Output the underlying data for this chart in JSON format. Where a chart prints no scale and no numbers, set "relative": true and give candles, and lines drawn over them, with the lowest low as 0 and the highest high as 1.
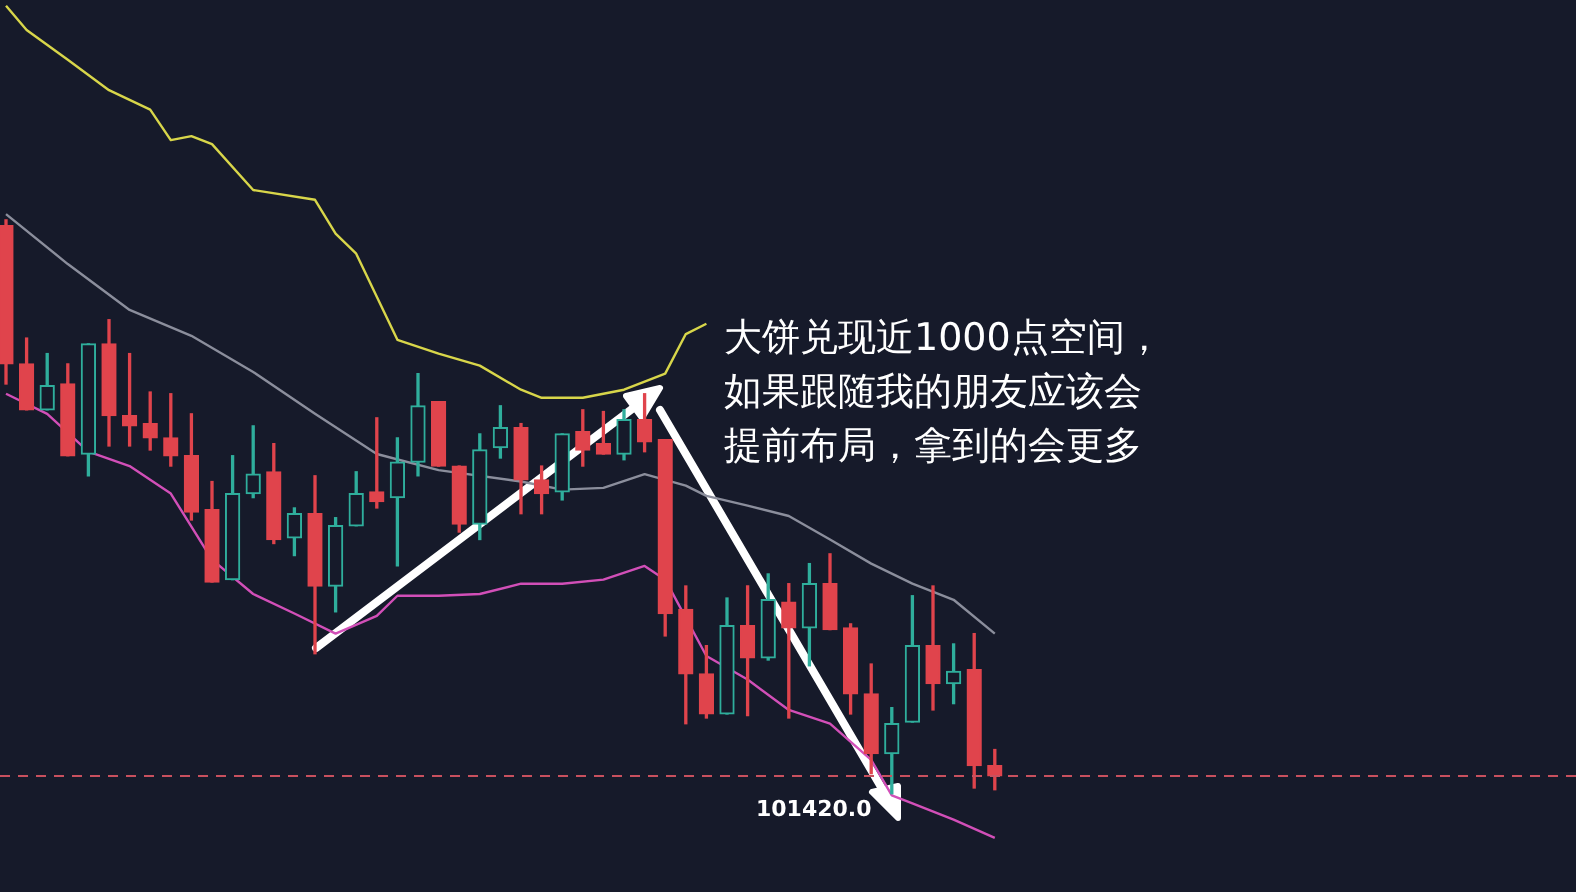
{
  "chart_data": {
    "type": "candlestick",
    "relative": true,
    "legend": false,
    "categories": [
      null,
      null,
      null,
      null,
      null,
      null,
      null,
      null,
      null,
      null,
      null,
      null,
      null,
      null,
      null,
      null,
      null,
      null,
      null,
      null,
      null,
      null,
      null,
      null,
      null,
      null,
      null,
      null,
      null,
      null,
      null,
      null,
      null,
      null,
      null,
      null,
      null,
      null,
      null,
      null,
      null,
      null,
      null,
      null,
      null,
      null,
      null,
      null,
      null
    ],
    "ohlc": [
      [
        0.99,
        1.0,
        0.714,
        0.749
      ],
      [
        0.749,
        0.794,
        0.669,
        0.669
      ],
      [
        0.669,
        0.767,
        0.669,
        0.711
      ],
      [
        0.714,
        0.749,
        0.589,
        0.589
      ],
      [
        0.592,
        0.784,
        0.554,
        0.784
      ],
      [
        0.784,
        0.826,
        0.606,
        0.659
      ],
      [
        0.659,
        0.767,
        0.606,
        0.641
      ],
      [
        0.645,
        0.7,
        0.599,
        0.62
      ],
      [
        0.62,
        0.697,
        0.571,
        0.589
      ],
      [
        0.589,
        0.662,
        0.477,
        0.491
      ],
      [
        0.495,
        0.544,
        0.369,
        0.369
      ],
      [
        0.373,
        0.589,
        0.373,
        0.523
      ],
      [
        0.523,
        0.641,
        0.516,
        0.557
      ],
      [
        0.561,
        0.61,
        0.436,
        0.443
      ],
      [
        0.446,
        0.498,
        0.415,
        0.488
      ],
      [
        0.488,
        0.554,
        0.244,
        0.362
      ],
      [
        0.362,
        0.481,
        0.317,
        0.467
      ],
      [
        0.467,
        0.561,
        0.467,
        0.523
      ],
      [
        0.526,
        0.655,
        0.498,
        0.509
      ],
      [
        0.516,
        0.62,
        0.397,
        0.578
      ],
      [
        0.578,
        0.732,
        0.554,
        0.676
      ],
      [
        0.683,
        0.683,
        0.571,
        0.571
      ],
      [
        0.571,
        0.571,
        0.456,
        0.47
      ],
      [
        0.47,
        0.627,
        0.443,
        0.599
      ],
      [
        0.603,
        0.676,
        0.585,
        0.638
      ],
      [
        0.638,
        0.645,
        0.488,
        0.547
      ],
      [
        0.547,
        0.571,
        0.488,
        0.523
      ],
      [
        0.526,
        0.627,
        0.512,
        0.627
      ],
      [
        0.631,
        0.669,
        0.571,
        0.599
      ],
      [
        0.61,
        0.666,
        0.592,
        0.592
      ],
      [
        0.592,
        0.669,
        0.582,
        0.652
      ],
      [
        0.652,
        0.697,
        0.596,
        0.613
      ],
      [
        0.617,
        0.617,
        0.275,
        0.314
      ],
      [
        0.321,
        0.362,
        0.122,
        0.209
      ],
      [
        0.209,
        0.258,
        0.132,
        0.139
      ],
      [
        0.139,
        0.341,
        0.139,
        0.293
      ],
      [
        0.293,
        0.362,
        0.136,
        0.237
      ],
      [
        0.237,
        0.383,
        0.233,
        0.338
      ],
      [
        0.334,
        0.366,
        0.132,
        0.289
      ],
      [
        0.289,
        0.401,
        0.223,
        0.366
      ],
      [
        0.366,
        0.418,
        0.286,
        0.286
      ],
      [
        0.289,
        0.296,
        0.139,
        0.174
      ],
      [
        0.174,
        0.226,
        0.035,
        0.07
      ],
      [
        0.07,
        0.15,
        0.0,
        0.122
      ],
      [
        0.125,
        0.345,
        0.125,
        0.258
      ],
      [
        0.258,
        0.362,
        0.146,
        0.192
      ],
      [
        0.192,
        0.261,
        0.157,
        0.213
      ],
      [
        0.216,
        0.279,
        0.01,
        0.049
      ],
      [
        0.049,
        0.077,
        0.007,
        0.031
      ]
    ],
    "colors": [
      "#e0444c",
      "#e0444c",
      "#2fae9c",
      "#e0444c",
      "#2fae9c",
      "#e0444c",
      "#e0444c",
      "#e0444c",
      "#e0444c",
      "#e0444c",
      "#e0444c",
      "#2fae9c",
      "#2fae9c",
      "#e0444c",
      "#2fae9c",
      "#e0444c",
      "#2fae9c",
      "#2fae9c",
      "#e0444c",
      "#2fae9c",
      "#2fae9c",
      "#e0444c",
      "#e0444c",
      "#2fae9c",
      "#2fae9c",
      "#e0444c",
      "#e0444c",
      "#2fae9c",
      "#e0444c",
      "#e0444c",
      "#2fae9c",
      "#e0444c",
      "#e0444c",
      "#e0444c",
      "#e0444c",
      "#2fae9c",
      "#e0444c",
      "#2fae9c",
      "#e0444c",
      "#2fae9c",
      "#e0444c",
      "#e0444c",
      "#e0444c",
      "#2fae9c",
      "#2fae9c",
      "#e0444c",
      "#2fae9c",
      "#e0444c",
      "#e0444c"
    ],
    "series": [
      {
        "type": "line",
        "color": "#d8d64a",
        "values": [
          1.373,
          1.331,
          null,
          1.279,
          null,
          1.226,
          null,
          1.192,
          1.139,
          1.146,
          1.132,
          null,
          1.052,
          null,
          null,
          1.035,
          0.976,
          0.941,
          null,
          0.791,
          null,
          0.767,
          null,
          0.746,
          null,
          0.704,
          0.69,
          null,
          0.69,
          null,
          0.704,
          null,
          0.732,
          0.801,
          0.819,
          null,
          null,
          null,
          null,
          null,
          null,
          null,
          null,
          null,
          null,
          null,
          null,
          null,
          null
        ]
      },
      {
        "type": "line",
        "color": "#8b8e9c",
        "values": [
          1.01,
          null,
          null,
          0.923,
          null,
          null,
          0.843,
          null,
          null,
          0.798,
          null,
          null,
          0.735,
          null,
          null,
          0.662,
          null,
          null,
          0.592,
          null,
          null,
          0.564,
          null,
          null,
          null,
          0.544,
          null,
          0.53,
          null,
          0.533,
          null,
          0.557,
          null,
          0.537,
          0.519,
          null,
          0.502,
          null,
          0.484,
          null,
          0.443,
          null,
          0.401,
          null,
          0.366,
          null,
          0.338,
          null,
          0.279
        ]
      },
      {
        "type": "line",
        "color": "#d24fb8",
        "values": [
          0.697,
          null,
          0.662,
          null,
          0.596,
          null,
          0.571,
          null,
          0.523,
          null,
          0.408,
          null,
          0.348,
          null,
          0.314,
          null,
          0.279,
          null,
          0.31,
          0.345,
          null,
          0.345,
          null,
          0.348,
          null,
          0.366,
          null,
          0.366,
          null,
          0.373,
          null,
          0.397,
          0.373,
          null,
          0.24,
          null,
          0.199,
          null,
          0.146,
          null,
          0.122,
          null,
          0.059,
          -0.003,
          -0.017,
          null,
          -0.045,
          null,
          -0.077
        ]
      }
    ],
    "ref_lines": [
      {
        "axis": "y",
        "value": 0.031,
        "color": "#c8505e",
        "line_style": "dashed"
      }
    ],
    "annotations": [
      "101420.0",
      "大饼兑现近1000点空间，",
      "如果跟随我的朋友应该会",
      "提前布局，拿到的会更多"
    ]
  }
}
